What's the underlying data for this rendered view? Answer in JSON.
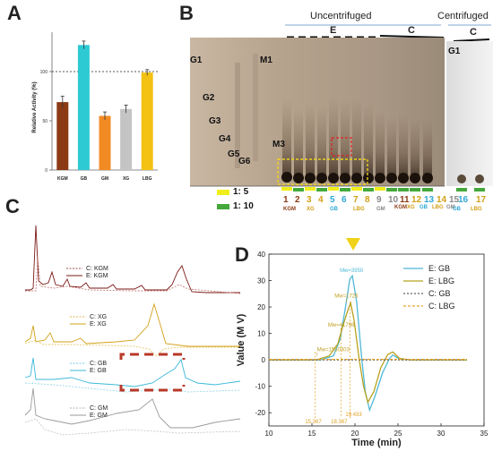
{
  "panels": {
    "A": {
      "letter": "A",
      "chart_data": {
        "type": "bar",
        "categories": [
          "KGM",
          "GB",
          "GM",
          "XG",
          "LBG"
        ],
        "values": [
          69,
          127,
          55,
          62,
          99
        ],
        "errors": [
          6,
          4,
          4,
          4,
          3
        ],
        "colors": [
          "#8b3a14",
          "#2ecad4",
          "#f28a24",
          "#c4c4c4",
          "#f3c212"
        ],
        "ylabel": "Relative Activity (%)",
        "yticks": [
          0,
          50,
          100
        ],
        "ylim": [
          0,
          140
        ],
        "reference_line": 100
      }
    },
    "B": {
      "letter": "B",
      "headers": {
        "uncentrifuged": "Uncentrifuged",
        "centrifuged": "Centrifuged",
        "E": "E",
        "C1": "C",
        "C2": "C"
      },
      "markers": [
        "G1",
        "G2",
        "G3",
        "G4",
        "G5",
        "G6",
        "M1",
        "M3",
        "G1"
      ],
      "ratio_legend": [
        {
          "label": "1: 5",
          "color": "#f0ee1a"
        },
        {
          "label": "1: 10",
          "color": "#44a83c"
        }
      ],
      "lane_numbers": [
        "1",
        "2",
        "3",
        "4",
        "5",
        "6",
        "7",
        "8",
        "9",
        "10",
        "11",
        "12",
        "13",
        "14",
        "15",
        "16",
        "17"
      ],
      "lane_groups": [
        "KGM",
        "XG",
        "GB",
        "LBG",
        "GM",
        "KGM",
        "XG",
        "GB",
        "LBG",
        "GM",
        "GB",
        "LBG"
      ]
    },
    "C": {
      "letter": "C",
      "legends": [
        {
          "c": "C: KGM",
          "e": "E: KGM"
        },
        {
          "c": "C: XG",
          "e": "E: XG"
        },
        {
          "c": "C: GB",
          "e": "E: GB"
        },
        {
          "c": "C: GM",
          "e": "E: GM"
        }
      ],
      "colors": [
        "#7a1a16",
        "#d2a018",
        "#3cb8d8",
        "#9a9a9a"
      ]
    },
    "D": {
      "letter": "D",
      "chart_data": {
        "type": "line",
        "xlabel": "Time (min)",
        "ylabel": "Value (M V)",
        "xlim": [
          10,
          35
        ],
        "ylim": [
          -25,
          40
        ],
        "xticks": [
          10,
          15,
          20,
          25,
          30,
          35
        ],
        "yticks": [
          -20,
          -10,
          0,
          10,
          20,
          30,
          40
        ],
        "series": [
          {
            "name": "E: GB",
            "color": "#4fb8d8",
            "dash": "solid",
            "x": [
              10,
              16,
              17.5,
              18.3,
              19.0,
              19.4,
              19.7,
              20.2,
              20.8,
              21.2,
              21.7,
              22.3,
              23.2,
              24.0,
              24.4,
              25.2,
              26.5,
              28,
              33
            ],
            "y": [
              0,
              0,
              1.5,
              8,
              22,
              30.5,
              31.8,
              22,
              0,
              -12,
              -19,
              -14,
              -5,
              0.5,
              1.8,
              0.3,
              0,
              0,
              0
            ]
          },
          {
            "name": "E: LBG",
            "color": "#b8a21e",
            "dash": "solid",
            "x": [
              10,
              15.5,
              17.0,
              18.0,
              18.6,
              19.2,
              19.5,
              19.9,
              20.5,
              21.0,
              21.5,
              22.2,
              23.0,
              23.8,
              24.4,
              25.2,
              26.5,
              28,
              33
            ],
            "y": [
              0,
              0,
              1.5,
              6,
              13,
              19,
              21.5,
              15,
              0,
              -10,
              -16,
              -12,
              -3,
              2,
              3,
              0.5,
              0,
              0,
              0
            ]
          },
          {
            "name": "C: GB",
            "color": "#666666",
            "dash": "2,2",
            "x": [
              10,
              33
            ],
            "y": [
              0,
              0
            ]
          },
          {
            "name": "C: LBG",
            "color": "#e8a32a",
            "dash": "3,2",
            "x": [
              10,
              33
            ],
            "y": [
              0.2,
              0.2
            ]
          }
        ],
        "annotations": [
          {
            "label": "Mw=3950",
            "x": 19.6,
            "y": 33.3,
            "color": "#4fb8d8"
          },
          {
            "label": "Mw=1726",
            "x": 19.0,
            "y": 23.5,
            "color": "#c0a020"
          },
          {
            "label": "Mw=41798",
            "x": 18.4,
            "y": 12.5,
            "color": "#c0a020"
          },
          {
            "label": "Mw=1550303",
            "x": 15.6,
            "y": 3.2,
            "color": "#c0a020"
          }
        ],
        "vlines": [
          {
            "x": 15.367,
            "label": "15.367"
          },
          {
            "x": 18.367,
            "label": "18.367"
          },
          {
            "x": 19.433,
            "label": "19.433"
          }
        ]
      }
    }
  }
}
